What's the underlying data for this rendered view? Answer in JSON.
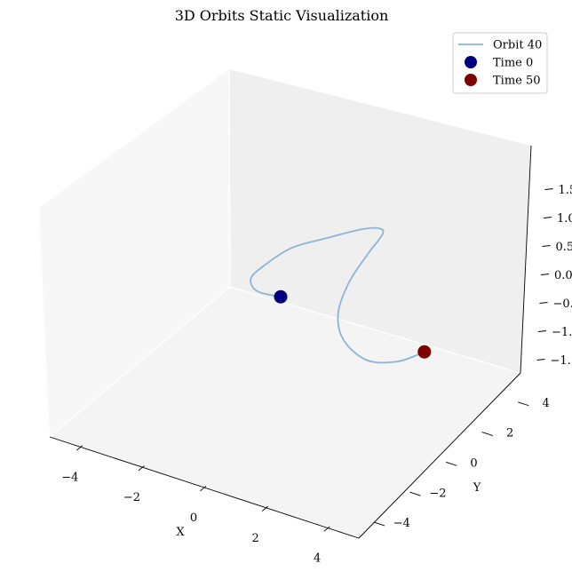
{
  "chart_data": {
    "type": "line3d",
    "title": "3D Orbits Static Visualization",
    "xlabel": "X",
    "ylabel": "Y",
    "zlabel": "",
    "xlim": [
      -5,
      5
    ],
    "ylim": [
      -5,
      5
    ],
    "zlim": [
      -2,
      2
    ],
    "x_ticks": [
      -4,
      -2,
      0,
      2,
      4
    ],
    "x_tick_labels": [
      "−4",
      "−2",
      "0",
      "2",
      "4"
    ],
    "y_ticks": [
      -4,
      -2,
      0,
      2,
      4
    ],
    "y_tick_labels": [
      "−4",
      "−2",
      "0",
      "2",
      "4"
    ],
    "z_ticks": [
      -1.5,
      -1.0,
      -0.5,
      0.0,
      0.5,
      1.0,
      1.5
    ],
    "z_tick_labels": [
      "−1.5",
      "−1.0",
      "−0.5",
      "0.0",
      "0.5",
      "1.0",
      "1.5"
    ],
    "series": [
      {
        "name": "Orbit 40",
        "kind": "line",
        "color": "#8ab4d9",
        "points": [
          [
            -0.5,
            -0.2,
            0.0
          ],
          [
            -1.2,
            -0.3,
            0.0
          ],
          [
            -1.7,
            0.2,
            0.0
          ],
          [
            -1.6,
            0.8,
            0.1
          ],
          [
            -1.0,
            1.2,
            0.4
          ],
          [
            0.0,
            1.4,
            0.7
          ],
          [
            1.0,
            1.5,
            1.0
          ],
          [
            1.7,
            1.3,
            1.2
          ],
          [
            2.1,
            0.8,
            1.3
          ],
          [
            2.0,
            0.2,
            1.1
          ],
          [
            1.6,
            -0.1,
            0.6
          ],
          [
            1.3,
            -0.1,
            0.0
          ],
          [
            1.4,
            0.1,
            -0.5
          ],
          [
            1.9,
            0.6,
            -0.9
          ],
          [
            2.5,
            1.3,
            -1.0
          ],
          [
            3.0,
            1.9,
            -0.9
          ]
        ]
      },
      {
        "name": "Time 0",
        "kind": "scatter",
        "color": "#00007f",
        "point": [
          -0.5,
          -0.2,
          0.0
        ]
      },
      {
        "name": "Time 50",
        "kind": "scatter",
        "color": "#7f0000",
        "point": [
          3.0,
          1.9,
          -0.9
        ]
      }
    ],
    "grid": false,
    "legend_placement": "top-right",
    "pane_colors": {
      "floor": "#f4f4f4",
      "left_wall": "#f7f7f7",
      "right_wall": "#efefef"
    }
  }
}
